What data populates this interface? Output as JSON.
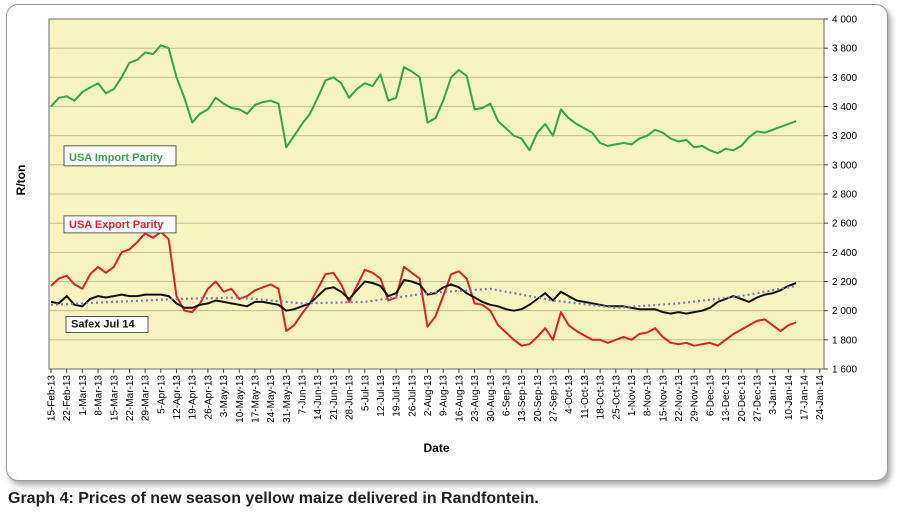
{
  "caption": "Graph 4: Prices of new season yellow maize delivered in Randfontein.",
  "chart_data": {
    "type": "line",
    "title": "",
    "xlabel": "Date",
    "ylabel": "R/ton",
    "ylim": [
      1600,
      4000
    ],
    "y_ticks": [
      1600,
      1800,
      2000,
      2200,
      2400,
      2600,
      2800,
      3000,
      3200,
      3400,
      3600,
      3800,
      4000
    ],
    "y_tick_labels": [
      "1 600",
      "1 800",
      "2 000",
      "2 200",
      "2 400",
      "2 600",
      "2 800",
      "3 000",
      "3 200",
      "3 400",
      "3 600",
      "3 800",
      "4 000"
    ],
    "x_tick_labels": [
      "15-Feb-13",
      "22-Feb-13",
      "1-Mar-13",
      "8-Mar-13",
      "15-Mar-13",
      "22-Mar-13",
      "29-Mar-13",
      "5-Apr-13",
      "12-Apr-13",
      "19-Apr-13",
      "26-Apr-13",
      "3-May-13",
      "10-May-13",
      "17-May-13",
      "24-May-13",
      "31-May-13",
      "7-Jun-13",
      "14-Jun-13",
      "21-Jun-13",
      "28-Jun-13",
      "5-Jul-13",
      "12-Jul-13",
      "19-Jul-13",
      "26-Jul-13",
      "2-Aug-13",
      "9-Aug-13",
      "16-Aug-13",
      "23-Aug-13",
      "30-Aug-13",
      "6-Sep-13",
      "13-Sep-13",
      "20-Sep-13",
      "27-Sep-13",
      "4-Oct-13",
      "11-Oct-13",
      "18-Oct-13",
      "25-Oct-13",
      "1-Nov-13",
      "8-Nov-13",
      "15-Nov-13",
      "22-Nov-13",
      "29-Nov-13",
      "6-Dec-13",
      "13-Dec-13",
      "20-Dec-13",
      "27-Dec-13",
      "3-Jan-14",
      "10-Jan-14",
      "17-Jan-14",
      "24-Jan-14"
    ],
    "plot_background": "#f7f4bf",
    "grid": "horizontal",
    "series": [
      {
        "name": "USA Import Parity",
        "color": "#2ea84a",
        "style": "solid",
        "label_position": "left",
        "x_week": [
          0,
          0.5,
          1,
          1.5,
          2,
          2.5,
          3,
          3.5,
          4,
          4.5,
          5,
          5.5,
          6,
          6.5,
          7,
          7.5,
          8,
          8.5,
          9,
          9.5,
          10,
          10.5,
          11,
          11.5,
          12,
          12.5,
          13,
          13.5,
          14,
          14.5,
          15,
          15.5,
          16,
          16.5,
          17,
          17.5,
          18,
          18.5,
          19,
          19.5,
          20,
          20.5,
          21,
          21.5,
          22,
          22.5,
          23,
          23.5,
          24,
          24.5,
          25,
          25.5,
          26,
          26.5,
          27,
          27.5,
          28,
          28.5,
          29,
          29.5,
          30,
          30.5,
          31,
          31.5,
          32,
          32.5,
          33,
          33.5,
          34,
          34.5,
          35,
          35.5,
          36,
          36.5,
          37,
          37.5,
          38,
          38.5,
          39,
          39.5,
          40,
          40.5,
          41,
          41.5,
          42,
          42.5,
          43,
          43.5,
          44,
          44.5,
          45,
          45.5,
          46,
          46.5,
          47,
          47.5
        ],
        "values": [
          3400,
          3460,
          3470,
          3440,
          3500,
          3530,
          3560,
          3490,
          3520,
          3600,
          3700,
          3720,
          3770,
          3760,
          3820,
          3800,
          3600,
          3460,
          3290,
          3350,
          3380,
          3460,
          3420,
          3390,
          3380,
          3350,
          3410,
          3430,
          3440,
          3420,
          3120,
          3200,
          3280,
          3350,
          3460,
          3580,
          3600,
          3560,
          3460,
          3520,
          3560,
          3540,
          3620,
          3440,
          3460,
          3670,
          3640,
          3600,
          3290,
          3320,
          3440,
          3600,
          3650,
          3610,
          3380,
          3390,
          3420,
          3300,
          3250,
          3200,
          3180,
          3100,
          3220,
          3280,
          3200,
          3380,
          3320,
          3280,
          3250,
          3220,
          3150,
          3130,
          3140,
          3150,
          3140,
          3180,
          3200,
          3240,
          3220,
          3180,
          3160,
          3170,
          3120,
          3130,
          3100,
          3080,
          3110,
          3100,
          3130,
          3190,
          3230,
          3220,
          3240,
          3260,
          3280,
          3300
        ]
      },
      {
        "name": "USA Export Parity",
        "color": "#e32124",
        "style": "solid",
        "label_position": "left",
        "x_week": [
          0,
          0.5,
          1,
          1.5,
          2,
          2.5,
          3,
          3.5,
          4,
          4.5,
          5,
          5.5,
          6,
          6.5,
          7,
          7.5,
          8,
          8.5,
          9,
          9.5,
          10,
          10.5,
          11,
          11.5,
          12,
          12.5,
          13,
          13.5,
          14,
          14.5,
          15,
          15.5,
          16,
          16.5,
          17,
          17.5,
          18,
          18.5,
          19,
          19.5,
          20,
          20.5,
          21,
          21.5,
          22,
          22.5,
          23,
          23.5,
          24,
          24.5,
          25,
          25.5,
          26,
          26.5,
          27,
          27.5,
          28,
          28.5,
          29,
          29.5,
          30,
          30.5,
          31,
          31.5,
          32,
          32.5,
          33,
          33.5,
          34,
          34.5,
          35,
          35.5,
          36,
          36.5,
          37,
          37.5,
          38,
          38.5,
          39,
          39.5,
          40,
          40.5,
          41,
          41.5,
          42,
          42.5,
          43,
          43.5,
          44,
          44.5,
          45,
          45.5,
          46,
          46.5,
          47,
          47.5
        ],
        "values": [
          2170,
          2220,
          2240,
          2180,
          2150,
          2250,
          2300,
          2260,
          2300,
          2400,
          2420,
          2470,
          2530,
          2500,
          2540,
          2490,
          2100,
          2000,
          1990,
          2050,
          2150,
          2200,
          2130,
          2150,
          2080,
          2100,
          2140,
          2160,
          2180,
          2150,
          1860,
          1900,
          1980,
          2050,
          2150,
          2250,
          2260,
          2180,
          2060,
          2170,
          2280,
          2260,
          2220,
          2070,
          2090,
          2300,
          2260,
          2220,
          1890,
          1960,
          2100,
          2250,
          2270,
          2220,
          2050,
          2040,
          2000,
          1900,
          1850,
          1800,
          1760,
          1770,
          1820,
          1880,
          1800,
          1990,
          1900,
          1860,
          1830,
          1800,
          1800,
          1780,
          1800,
          1820,
          1800,
          1840,
          1850,
          1880,
          1820,
          1780,
          1770,
          1780,
          1760,
          1770,
          1780,
          1760,
          1800,
          1840,
          1870,
          1900,
          1930,
          1940,
          1900,
          1860,
          1900,
          1920
        ]
      },
      {
        "name": "Safex Jul 14",
        "color": "#111111",
        "style": "solid",
        "label_position": "left",
        "x_week": [
          0,
          0.5,
          1,
          1.5,
          2,
          2.5,
          3,
          3.5,
          4,
          4.5,
          5,
          5.5,
          6,
          6.5,
          7,
          7.5,
          8,
          8.5,
          9,
          9.5,
          10,
          10.5,
          11,
          11.5,
          12,
          12.5,
          13,
          13.5,
          14,
          14.5,
          15,
          15.5,
          16,
          16.5,
          17,
          17.5,
          18,
          18.5,
          19,
          19.5,
          20,
          20.5,
          21,
          21.5,
          22,
          22.5,
          23,
          23.5,
          24,
          24.5,
          25,
          25.5,
          26,
          26.5,
          27,
          27.5,
          28,
          28.5,
          29,
          29.5,
          30,
          30.5,
          31,
          31.5,
          32,
          32.5,
          33,
          33.5,
          34,
          34.5,
          35,
          35.5,
          36,
          36.5,
          37,
          37.5,
          38,
          38.5,
          39,
          39.5,
          40,
          40.5,
          41,
          41.5,
          42,
          42.5,
          43,
          43.5,
          44,
          44.5,
          45,
          45.5,
          46,
          46.5,
          47,
          47.5
        ],
        "values": [
          2060,
          2050,
          2100,
          2040,
          2030,
          2080,
          2100,
          2090,
          2100,
          2110,
          2100,
          2100,
          2110,
          2110,
          2110,
          2100,
          2050,
          2020,
          2020,
          2040,
          2050,
          2070,
          2060,
          2050,
          2040,
          2030,
          2060,
          2060,
          2050,
          2040,
          2000,
          2010,
          2030,
          2050,
          2100,
          2150,
          2160,
          2130,
          2080,
          2140,
          2200,
          2190,
          2170,
          2100,
          2120,
          2210,
          2200,
          2180,
          2110,
          2120,
          2160,
          2180,
          2160,
          2120,
          2090,
          2060,
          2040,
          2030,
          2010,
          2000,
          2010,
          2040,
          2080,
          2120,
          2070,
          2130,
          2100,
          2070,
          2060,
          2050,
          2040,
          2030,
          2030,
          2030,
          2020,
          2010,
          2010,
          2010,
          1990,
          1980,
          1990,
          1980,
          1990,
          2000,
          2020,
          2060,
          2080,
          2100,
          2080,
          2060,
          2090,
          2110,
          2120,
          2140,
          2170,
          2190
        ]
      },
      {
        "name": "",
        "color": "#7a7ab8",
        "style": "dotted",
        "x_week": [
          0,
          4,
          8,
          12,
          16,
          20,
          24,
          28,
          32,
          36,
          40,
          44,
          47.5
        ],
        "values": [
          2040,
          2060,
          2080,
          2090,
          2050,
          2060,
          2120,
          2150,
          2070,
          2020,
          2050,
          2100,
          2170
        ]
      }
    ]
  }
}
